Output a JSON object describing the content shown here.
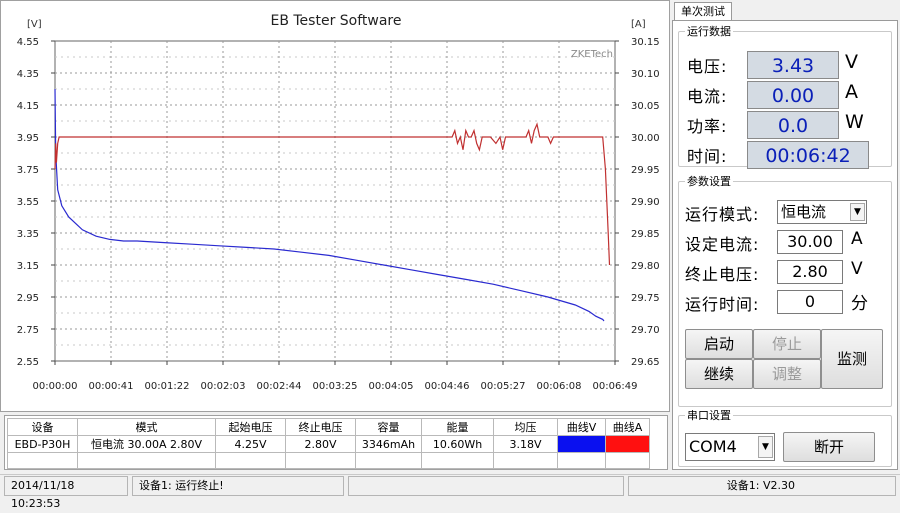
{
  "chart": {
    "title": "EB Tester Software",
    "left_unit": "[V]",
    "right_unit": "[A]",
    "watermark": "ZKETech",
    "voltage_color": "#2a2ad0",
    "current_color": "#c03030"
  },
  "chart_data": {
    "type": "line",
    "title": "EB Tester Software",
    "xlabel": "",
    "ylabel": "[V]",
    "y2label": "[A]",
    "x_ticks": [
      "00:00:00",
      "00:00:41",
      "00:01:22",
      "00:02:03",
      "00:02:44",
      "00:03:25",
      "00:04:05",
      "00:04:46",
      "00:05:27",
      "00:06:08",
      "00:06:49"
    ],
    "x_range_seconds": [
      0,
      409
    ],
    "y_left_ticks": [
      "4.55",
      "4.35",
      "4.15",
      "3.95",
      "3.75",
      "3.55",
      "3.35",
      "3.15",
      "2.95",
      "2.75",
      "2.55"
    ],
    "y_left_range": [
      2.55,
      4.55
    ],
    "y_right_ticks": [
      "30.15",
      "30.10",
      "30.05",
      "30.00",
      "29.95",
      "29.90",
      "29.85",
      "29.80",
      "29.75",
      "29.70",
      "29.65"
    ],
    "y_right_range": [
      29.65,
      30.15
    ],
    "grid": true,
    "series": [
      {
        "axis": "left",
        "color": "#2a2ad0",
        "x": [
          0,
          0.5,
          2,
          5,
          10,
          20,
          30,
          40,
          50,
          60,
          80,
          100,
          120,
          140,
          160,
          180,
          200,
          220,
          240,
          260,
          280,
          300,
          320,
          340,
          360,
          380,
          390,
          395,
          400,
          401
        ],
        "values": [
          4.25,
          3.85,
          3.62,
          3.52,
          3.45,
          3.37,
          3.33,
          3.31,
          3.3,
          3.3,
          3.29,
          3.28,
          3.27,
          3.26,
          3.25,
          3.23,
          3.21,
          3.18,
          3.15,
          3.12,
          3.09,
          3.06,
          3.03,
          2.99,
          2.95,
          2.9,
          2.86,
          2.83,
          2.81,
          2.8
        ]
      },
      {
        "axis": "right",
        "color": "#c03030",
        "x": [
          0,
          0.5,
          1,
          2,
          3,
          5,
          100,
          200,
          290,
          292,
          294,
          296,
          298,
          300,
          302,
          304,
          306,
          308,
          310,
          312,
          314,
          318,
          322,
          325,
          327,
          329,
          332,
          336,
          340,
          344,
          346,
          348,
          350,
          352,
          354,
          356,
          358,
          360,
          362,
          364,
          366,
          368,
          380,
          400,
          402,
          404,
          405
        ],
        "values": [
          29.95,
          29.99,
          29.96,
          29.99,
          30.0,
          30.0,
          30.0,
          30.0,
          30.0,
          30.01,
          29.99,
          30.0,
          29.98,
          30.01,
          30.0,
          30.0,
          30.01,
          29.99,
          29.98,
          30.0,
          30.0,
          30.0,
          29.99,
          30.0,
          29.98,
          30.0,
          30.0,
          30.0,
          30.0,
          30.0,
          30.01,
          29.99,
          30.01,
          30.02,
          30.0,
          30.0,
          30.0,
          30.0,
          29.99,
          30.0,
          30.0,
          30.0,
          30.0,
          30.0,
          29.95,
          29.85,
          29.8
        ]
      }
    ]
  },
  "tab": {
    "label": "单次测试"
  },
  "runtime": {
    "legend": "运行数据",
    "voltage_label": "电压:",
    "voltage_value": "3.43",
    "voltage_unit": "V",
    "current_label": "电流:",
    "current_value": "0.00",
    "current_unit": "A",
    "power_label": "功率:",
    "power_value": "0.0",
    "power_unit": "W",
    "time_label": "时间:",
    "time_value": "00:06:42"
  },
  "params": {
    "legend": "参数设置",
    "mode_label": "运行模式:",
    "mode_value": "恒电流",
    "set_current_label": "设定电流:",
    "set_current_value": "30.00",
    "set_current_unit": "A",
    "cutoff_label": "终止电压:",
    "cutoff_value": "2.80",
    "cutoff_unit": "V",
    "runtime_label": "运行时间:",
    "runtime_value": "0",
    "runtime_unit": "分",
    "start_label": "启动",
    "stop_label": "停止",
    "continue_label": "继续",
    "adjust_label": "调整",
    "monitor_label": "监测"
  },
  "serial": {
    "legend": "串口设置",
    "port_value": "COM4",
    "disconnect_label": "断开"
  },
  "table": {
    "headers": [
      "设备",
      "模式",
      "起始电压",
      "终止电压",
      "容量",
      "能量",
      "均压",
      "曲线V",
      "曲线A"
    ],
    "row": {
      "device": "EBD-P30H",
      "mode": "恒电流  30.00A  2.80V",
      "start_v": "4.25V",
      "end_v": "2.80V",
      "capacity": "3346mAh",
      "energy": "10.60Wh",
      "avg_v": "3.18V",
      "curve_v_color": "#0a10f0",
      "curve_a_color": "#ff1010"
    }
  },
  "status": {
    "datetime": "2014/11/18 10:23:53",
    "message": "设备1: 运行终止!",
    "version": "设备1: V2.30"
  }
}
